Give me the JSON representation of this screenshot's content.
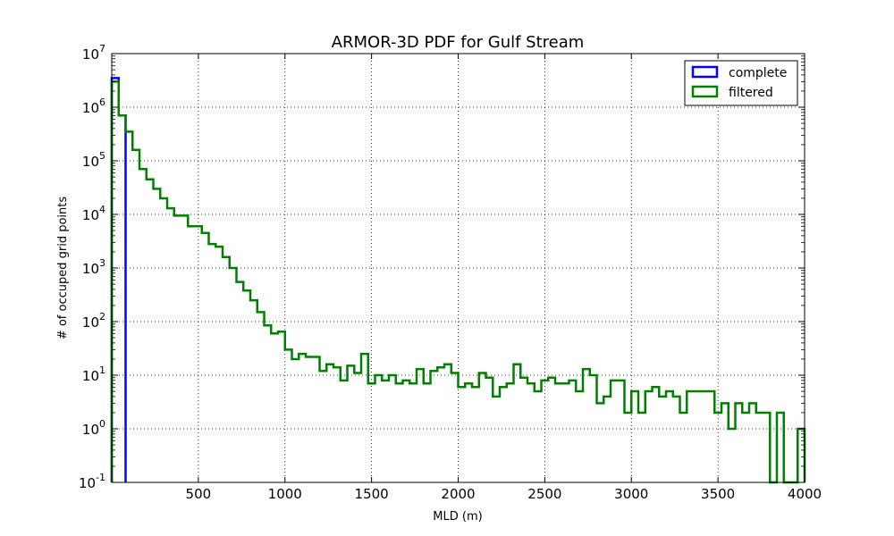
{
  "chart_data": {
    "type": "step-histogram",
    "title": "ARMOR-3D PDF for Gulf Stream",
    "xlabel": "MLD (m)",
    "ylabel": "# of occuped grid points",
    "xlim": [
      0,
      4000
    ],
    "ylim": [
      0.1,
      10000000
    ],
    "yscale": "log",
    "grid": true,
    "legend_loc": "upper right",
    "bin_width": 40,
    "x_ticks": [
      "500",
      "1000",
      "1500",
      "2000",
      "2500",
      "3000",
      "3500",
      "4000"
    ],
    "y_ticks": [
      {
        "mant": "10",
        "exp": "-1"
      },
      {
        "mant": "10",
        "exp": "0"
      },
      {
        "mant": "10",
        "exp": "1"
      },
      {
        "mant": "10",
        "exp": "2"
      },
      {
        "mant": "10",
        "exp": "3"
      },
      {
        "mant": "10",
        "exp": "4"
      },
      {
        "mant": "10",
        "exp": "5"
      },
      {
        "mant": "10",
        "exp": "6"
      },
      {
        "mant": "10",
        "exp": "7"
      }
    ],
    "series": [
      {
        "name": "complete",
        "color": "#0000ff",
        "x": [
          0,
          40
        ],
        "values": [
          3500000,
          700000
        ]
      },
      {
        "name": "filtered",
        "color": "#007f00",
        "x": [
          0,
          40,
          80,
          120,
          160,
          200,
          240,
          280,
          320,
          360,
          400,
          440,
          480,
          520,
          560,
          600,
          640,
          680,
          720,
          760,
          800,
          840,
          880,
          920,
          960,
          1000,
          1040,
          1080,
          1120,
          1160,
          1200,
          1240,
          1280,
          1320,
          1360,
          1400,
          1440,
          1480,
          1520,
          1560,
          1600,
          1640,
          1680,
          1720,
          1760,
          1800,
          1840,
          1880,
          1920,
          1960,
          2000,
          2040,
          2080,
          2120,
          2160,
          2200,
          2240,
          2280,
          2320,
          2360,
          2400,
          2440,
          2480,
          2520,
          2560,
          2600,
          2640,
          2680,
          2720,
          2760,
          2800,
          2840,
          2880,
          2920,
          2960,
          3000,
          3040,
          3080,
          3120,
          3160,
          3200,
          3240,
          3280,
          3320,
          3360,
          3400,
          3440,
          3480,
          3520,
          3560,
          3600,
          3640,
          3680,
          3720,
          3760,
          3800,
          3840,
          3880,
          3920,
          3960
        ],
        "values": [
          3000000,
          700000,
          350000,
          160000,
          70000,
          45000,
          30000,
          20000,
          13000,
          9500,
          9500,
          6000,
          6000,
          4500,
          2800,
          2500,
          1600,
          1000,
          550,
          380,
          250,
          150,
          85,
          60,
          65,
          30,
          20,
          25,
          22,
          22,
          12,
          16,
          14,
          8,
          15,
          11,
          25,
          7,
          10,
          8,
          10,
          7,
          8,
          7,
          13,
          7,
          12,
          14,
          16,
          11,
          6,
          7,
          6,
          11,
          9,
          4,
          6,
          7,
          16,
          9,
          7,
          5,
          8,
          9,
          7,
          7,
          8,
          5,
          13,
          10,
          3,
          4,
          8,
          8,
          2,
          5,
          2,
          5,
          6,
          4,
          5,
          4,
          2,
          5,
          5,
          5,
          5,
          2,
          3,
          1,
          3,
          2,
          3,
          2,
          2,
          0,
          2,
          0,
          0,
          1
        ]
      }
    ]
  }
}
